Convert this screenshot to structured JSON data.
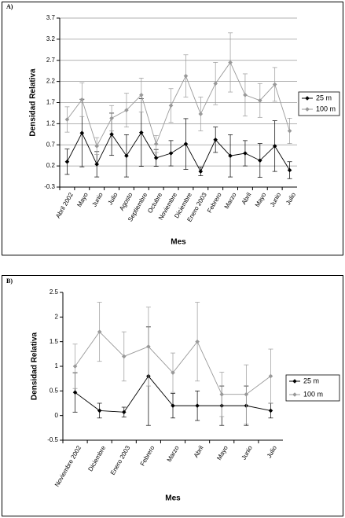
{
  "chart_data": [
    {
      "type": "line",
      "panel_label": "A)",
      "x_label": "Mes",
      "y_label": "Densidad Relativa",
      "categories": [
        "Abril 2002",
        "Mayo",
        "Junio",
        "Julio",
        "Agosto",
        "Septiembre",
        "Octubre",
        "Noviembre",
        "Diciembre",
        "Enero 2003",
        "Febrero",
        "Marzo",
        "Abril",
        "Mayo",
        "Junio",
        "Julio"
      ],
      "series": [
        {
          "name": "25 m",
          "color": "#000000",
          "values": [
            0.3,
            0.98,
            0.24,
            0.95,
            0.44,
            0.99,
            0.39,
            0.5,
            0.72,
            0.07,
            0.82,
            0.44,
            0.5,
            0.33,
            0.67,
            0.1
          ],
          "errors": [
            0.3,
            0.8,
            0.3,
            0.5,
            0.5,
            0.8,
            0.2,
            0.3,
            0.6,
            0.1,
            0.3,
            0.5,
            0.3,
            0.4,
            0.6,
            0.2
          ]
        },
        {
          "name": "100 m",
          "color": "#999999",
          "values": [
            1.3,
            1.77,
            0.67,
            1.33,
            1.52,
            1.88,
            0.72,
            1.63,
            2.33,
            1.43,
            2.15,
            2.65,
            1.88,
            1.75,
            2.13,
            1.03
          ],
          "errors": [
            0.3,
            0.4,
            0.2,
            0.3,
            0.4,
            0.4,
            0.2,
            0.4,
            0.5,
            0.4,
            0.5,
            0.7,
            0.5,
            0.4,
            0.4,
            0.3
          ]
        }
      ],
      "ylim": [
        -0.3,
        3.7
      ],
      "yticks": [
        -0.3,
        0.2,
        0.7,
        1.2,
        1.7,
        2.2,
        2.7,
        3.2,
        3.7
      ],
      "grid": true,
      "legend": "right"
    },
    {
      "type": "line",
      "panel_label": "B)",
      "x_label": "Mes",
      "y_label": "Densidad Relativa",
      "categories": [
        "Noviembre 2002",
        "Diciembre",
        "Enero 2003",
        "Febrero",
        "Marzo",
        "Abril",
        "Mayo",
        "Junio",
        "Julio"
      ],
      "series": [
        {
          "name": "25 m",
          "color": "#000000",
          "values": [
            0.47,
            0.1,
            0.07,
            0.8,
            0.2,
            0.2,
            0.2,
            0.2,
            0.1
          ],
          "errors": [
            0.4,
            0.15,
            0.1,
            1.0,
            0.25,
            0.3,
            0.4,
            0.4,
            0.15
          ]
        },
        {
          "name": "100 m",
          "color": "#999999",
          "values": [
            1.0,
            1.7,
            1.2,
            1.4,
            0.87,
            1.5,
            0.43,
            0.43,
            0.8
          ],
          "errors": [
            0.45,
            0.6,
            0.5,
            0.8,
            0.4,
            0.8,
            0.45,
            0.6,
            0.55
          ]
        }
      ],
      "ylim": [
        -0.5,
        2.5
      ],
      "yticks": [
        -0.5,
        0,
        0.5,
        1,
        1.5,
        2,
        2.5
      ],
      "grid": false,
      "legend": "right"
    }
  ]
}
